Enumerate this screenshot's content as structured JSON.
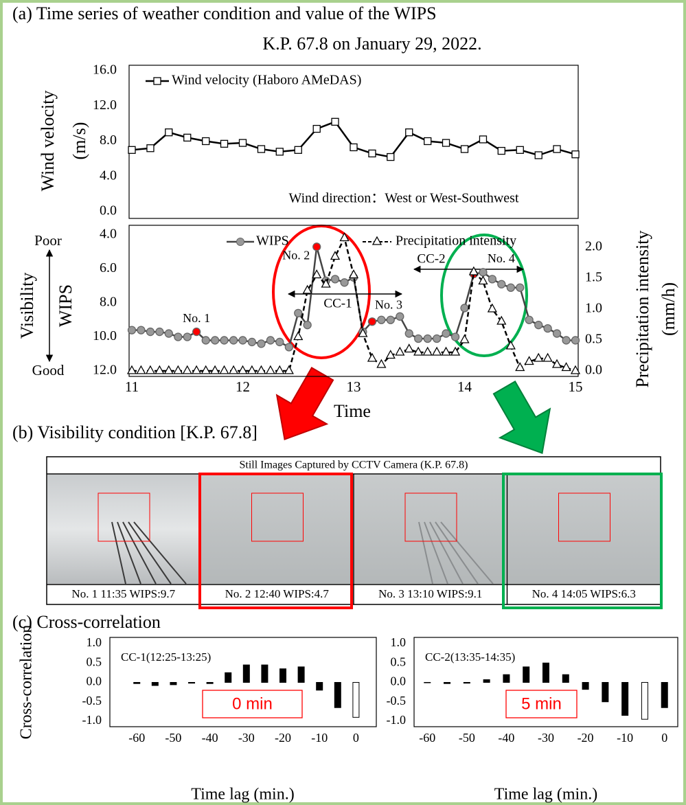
{
  "figure": {
    "panel_a": "(a) Time series of weather condition and value of the WIPS",
    "subtitle_a": "K.P. 67.8 on January 29, 2022.",
    "panel_b": "(b) Visibility condition [K.P. 67.8]",
    "panel_c": "(c) Cross-correlation",
    "cctv": {
      "title": "Still Images Captured by CCTV Camera (K.P. 67.8)",
      "captions": [
        "No. 1 11:35 WIPS:9.7",
        "No. 2 12:40 WIPS:4.7",
        "No. 3 13:10 WIPS:9.1",
        "No. 4 14:05 WIPS:6.3"
      ]
    }
  },
  "chart_data": [
    {
      "type": "line",
      "ylabel": [
        "Wind velocity",
        "(m/s)"
      ],
      "x": [
        11,
        11.167,
        11.333,
        11.5,
        11.667,
        11.833,
        12,
        12.167,
        12.333,
        12.5,
        12.667,
        12.833,
        13,
        13.167,
        13.333,
        13.5,
        13.667,
        13.833,
        14,
        14.167,
        14.333,
        14.5,
        14.667,
        14.833,
        15
      ],
      "xlim": [
        11,
        15
      ],
      "ylim": [
        0,
        16
      ],
      "yticks": [
        {
          "value": 0,
          "label": "0.0"
        },
        {
          "value": 4,
          "label": "4.0"
        },
        {
          "value": 8,
          "label": "8.0"
        },
        {
          "value": 12,
          "label": "12.0"
        },
        {
          "value": 16,
          "label": "16.0"
        }
      ],
      "grid": false,
      "legend": "upper left",
      "series": [
        {
          "name": "Wind velocity (Haboro AMeDAS)",
          "color": "#000000",
          "marker": "square",
          "values": [
            7.0,
            7.2,
            9.0,
            8.4,
            8.0,
            7.7,
            7.8,
            7.1,
            6.8,
            7.0,
            9.4,
            10.2,
            7.3,
            6.6,
            6.2,
            9.0,
            8.0,
            7.8,
            7.1,
            8.2,
            6.9,
            7.0,
            6.4,
            7.1,
            6.5
          ]
        }
      ],
      "annotation": "Wind direction：West or West-Southwest"
    },
    {
      "type": "line",
      "xlabel": "Time",
      "ylabel": [
        "Visibility",
        "WIPS"
      ],
      "ylabel_ends": [
        "Poor",
        "Good"
      ],
      "y2label": [
        "Precipitation intensity",
        "(mm/h)"
      ],
      "x": [
        11,
        11.083,
        11.167,
        11.25,
        11.333,
        11.417,
        11.5,
        11.583,
        11.667,
        11.75,
        11.833,
        11.917,
        12,
        12.083,
        12.167,
        12.25,
        12.333,
        12.417,
        12.5,
        12.583,
        12.667,
        12.75,
        12.833,
        12.917,
        13,
        13.083,
        13.167,
        13.25,
        13.333,
        13.417,
        13.5,
        13.583,
        13.667,
        13.75,
        13.833,
        13.917,
        14,
        14.083,
        14.167,
        14.25,
        14.333,
        14.417,
        14.5,
        14.583,
        14.667,
        14.75,
        14.833,
        14.917,
        15
      ],
      "xlim": [
        11,
        15
      ],
      "xticks": [
        11,
        12,
        13,
        14,
        15
      ],
      "ylim": [
        4,
        12
      ],
      "y_inverted": true,
      "yticks": [
        {
          "value": 4,
          "label": "4.0"
        },
        {
          "value": 6,
          "label": "6.0"
        },
        {
          "value": 8,
          "label": "8.0"
        },
        {
          "value": 10,
          "label": "10.0"
        },
        {
          "value": 12,
          "label": "12.0"
        }
      ],
      "y2lim": [
        0,
        2.2
      ],
      "y2ticks": [
        {
          "value": 0,
          "label": "0.0"
        },
        {
          "value": 0.5,
          "label": "0.5"
        },
        {
          "value": 1,
          "label": "1.0"
        },
        {
          "value": 1.5,
          "label": "1.5"
        },
        {
          "value": 2,
          "label": "2.0"
        }
      ],
      "grid": false,
      "series": [
        {
          "name": "WIPS",
          "color": "#999999",
          "marker": "circle",
          "highlight_points": [
            7,
            20,
            26,
            37
          ],
          "highlight_color": "#ff0000",
          "values": [
            9.6,
            9.6,
            9.7,
            9.7,
            9.8,
            10.0,
            10.0,
            9.7,
            10.2,
            10.2,
            10.2,
            10.2,
            10.2,
            10.3,
            10.4,
            10.2,
            10.3,
            10.6,
            8.6,
            9.3,
            4.7,
            6.7,
            6.6,
            6.8,
            6.5,
            9.7,
            9.1,
            9.0,
            9.0,
            8.8,
            9.8,
            10.1,
            10.1,
            10.1,
            9.8,
            10.0,
            8.3,
            6.3,
            6.2,
            6.6,
            6.9,
            7.1,
            7.1,
            9.0,
            9.3,
            9.5,
            9.8,
            10.2,
            10.2
          ]
        },
        {
          "name": "Precipitation intensity",
          "color": "#000000",
          "marker": "triangle",
          "dashed": true,
          "axis": "y2",
          "values": [
            0,
            0,
            0,
            0,
            0,
            0,
            0,
            0,
            0,
            0,
            0,
            0,
            0,
            0,
            0,
            0,
            0,
            0,
            0.55,
            1.3,
            1.55,
            1.4,
            1.85,
            2.15,
            1.55,
            0.6,
            0.2,
            0.1,
            0.25,
            0.3,
            0.35,
            0.3,
            0.3,
            0.3,
            0.3,
            0.3,
            0.5,
            1.6,
            1.45,
            1.0,
            0.8,
            0.4,
            0.05,
            0.15,
            0.2,
            0.2,
            0.1,
            0.05,
            0
          ]
        }
      ],
      "point_labels": [
        "No. 1",
        "No. 2",
        "No. 3",
        "No. 4"
      ],
      "annotations": [
        "CC-1",
        "CC-2"
      ]
    },
    {
      "type": "bar",
      "title": "CC-1(12:25-13:25)",
      "ylabel": "Cross-correlation",
      "xlabel": "Time lag (min.)",
      "x": [
        -60,
        -55,
        -50,
        -45,
        -40,
        -35,
        -30,
        -25,
        -20,
        -15,
        -10,
        -5,
        0
      ],
      "values": [
        -0.03,
        -0.08,
        -0.06,
        -0.02,
        -0.03,
        0.25,
        0.45,
        0.45,
        0.35,
        0.4,
        -0.2,
        -0.65,
        -0.9
      ],
      "colors": [
        "#000000",
        "#000000",
        "#000000",
        "#000000",
        "#000000",
        "#000000",
        "#000000",
        "#000000",
        "#000000",
        "#000000",
        "#000000",
        "#000000",
        "#ffffff"
      ],
      "xlim": [
        -67,
        5
      ],
      "xticks": [
        -60,
        -50,
        -40,
        -30,
        -20,
        -10,
        0
      ],
      "ylim": [
        -1,
        1
      ],
      "yticks": [
        {
          "value": -1,
          "label": "-1.0"
        },
        {
          "value": -0.5,
          "label": "-0.5"
        },
        {
          "value": 0,
          "label": "0.0"
        },
        {
          "value": 0.5,
          "label": "0.5"
        },
        {
          "value": 1,
          "label": "1.0"
        }
      ],
      "grid": false,
      "annotation": "0 min",
      "annotation_color": "#ff0000"
    },
    {
      "type": "bar",
      "title": "CC-2(13:35-14:35)",
      "xlabel": "Time lag (min.)",
      "x": [
        -60,
        -55,
        -50,
        -45,
        -40,
        -35,
        -30,
        -25,
        -20,
        -15,
        -10,
        -5,
        0
      ],
      "values": [
        -0.01,
        -0.03,
        -0.02,
        0.07,
        0.2,
        0.4,
        0.5,
        0.2,
        -0.18,
        -0.5,
        -0.85,
        -0.95,
        -0.65
      ],
      "colors": [
        "#000000",
        "#000000",
        "#000000",
        "#000000",
        "#000000",
        "#000000",
        "#000000",
        "#000000",
        "#000000",
        "#000000",
        "#000000",
        "#ffffff",
        "#000000"
      ],
      "xlim": [
        -63,
        3
      ],
      "xticks": [
        -60,
        -50,
        -40,
        -30,
        -20,
        -10,
        0
      ],
      "ylim": [
        -1,
        1
      ],
      "yticks": [
        {
          "value": -1,
          "label": "-1.0"
        },
        {
          "value": -0.5,
          "label": "-0.5"
        },
        {
          "value": 0,
          "label": "0.0"
        },
        {
          "value": 0.5,
          "label": "0.5"
        },
        {
          "value": 1,
          "label": "1.0"
        }
      ],
      "grid": false,
      "annotation": "5 min",
      "annotation_color": "#ff0000"
    }
  ]
}
